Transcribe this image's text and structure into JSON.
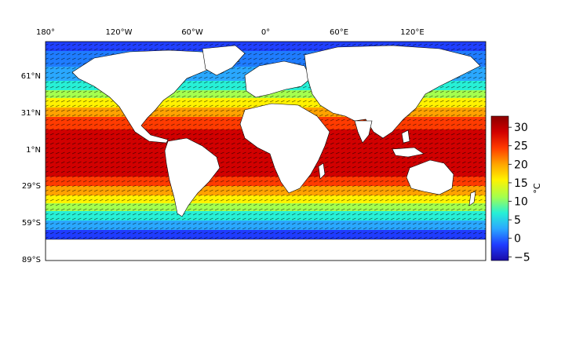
{
  "figure": {
    "type": "map",
    "projection": "equirectangular",
    "field": "sea surface temperature with surface current vectors",
    "lon_range": [
      -180,
      180
    ],
    "lat_range": [
      -89,
      89
    ],
    "lon_ticks": [
      {
        "lon": -180,
        "label": "180°"
      },
      {
        "lon": -120,
        "label": "120°W"
      },
      {
        "lon": -60,
        "label": "60°W"
      },
      {
        "lon": 0,
        "label": "0°"
      },
      {
        "lon": 60,
        "label": "60°E"
      },
      {
        "lon": 120,
        "label": "120°E"
      }
    ],
    "lat_ticks": [
      {
        "lat": 61,
        "label": "61°N"
      },
      {
        "lat": 31,
        "label": "31°N"
      },
      {
        "lat": 1,
        "label": "1°N"
      },
      {
        "lat": -29,
        "label": "29°S"
      },
      {
        "lat": -59,
        "label": "59°S"
      },
      {
        "lat": -89,
        "label": "89°S"
      }
    ],
    "land_color": "#ffffff",
    "border_color": "#000000"
  },
  "colorbar": {
    "unit": "°C",
    "range": [
      -6,
      33
    ],
    "ticks": [
      {
        "value": -5,
        "label": "−5"
      },
      {
        "value": 0,
        "label": "0"
      },
      {
        "value": 5,
        "label": "5"
      },
      {
        "value": 10,
        "label": "10"
      },
      {
        "value": 15,
        "label": "15"
      },
      {
        "value": 20,
        "label": "20"
      },
      {
        "value": 25,
        "label": "25"
      },
      {
        "value": 30,
        "label": "30"
      }
    ],
    "colormap": [
      "#1a0aa8",
      "#1f3cff",
      "#2aa8ff",
      "#27f0d6",
      "#a4ff4e",
      "#fff200",
      "#ffa200",
      "#ff3b00",
      "#d10000",
      "#8b0000"
    ]
  }
}
